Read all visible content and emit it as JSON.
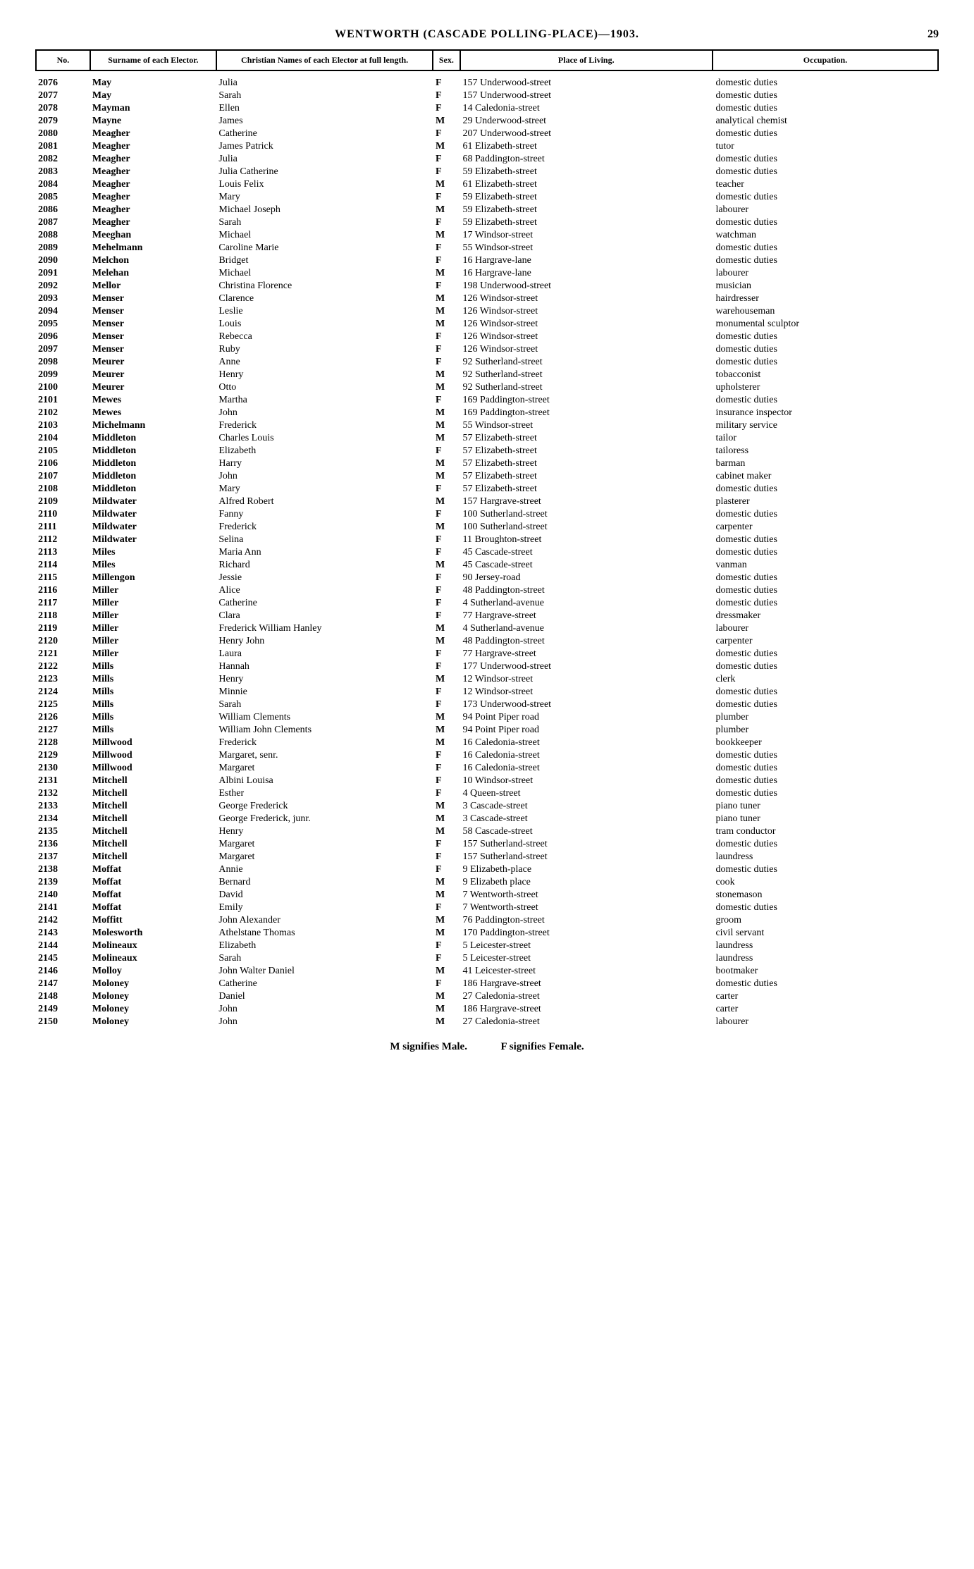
{
  "page_number": "29",
  "title": "WENTWORTH (CASCADE POLLING-PLACE)—1903.",
  "columns": [
    "No.",
    "Surname of each Elector.",
    "Christian Names of each Elector at full length.",
    "Sex.",
    "Place of Living.",
    "Occupation."
  ],
  "footer_left": "M signifies Male.",
  "footer_right": "F signifies Female.",
  "rows": [
    [
      "2076",
      "May",
      "Julia",
      "F",
      "157 Underwood-street",
      "domestic duties"
    ],
    [
      "2077",
      "May",
      "Sarah",
      "F",
      "157 Underwood-street",
      "domestic duties"
    ],
    [
      "2078",
      "Mayman",
      "Ellen",
      "F",
      "14 Caledonia-street",
      "domestic duties"
    ],
    [
      "2079",
      "Mayne",
      "James",
      "M",
      "29 Underwood-street",
      "analytical chemist"
    ],
    [
      "2080",
      "Meagher",
      "Catherine",
      "F",
      "207 Underwood-street",
      "domestic duties"
    ],
    [
      "2081",
      "Meagher",
      "James Patrick",
      "M",
      "61 Elizabeth-street",
      "tutor"
    ],
    [
      "2082",
      "Meagher",
      "Julia",
      "F",
      "68 Paddington-street",
      "domestic duties"
    ],
    [
      "2083",
      "Meagher",
      "Julia Catherine",
      "F",
      "59 Elizabeth-street",
      "domestic duties"
    ],
    [
      "2084",
      "Meagher",
      "Louis Felix",
      "M",
      "61 Elizabeth-street",
      "teacher"
    ],
    [
      "2085",
      "Meagher",
      "Mary",
      "F",
      "59 Elizabeth-street",
      "domestic duties"
    ],
    [
      "2086",
      "Meagher",
      "Michael Joseph",
      "M",
      "59 Elizabeth-street",
      "labourer"
    ],
    [
      "2087",
      "Meagher",
      "Sarah",
      "F",
      "59 Elizabeth-street",
      "domestic duties"
    ],
    [
      "2088",
      "Meeghan",
      "Michael",
      "M",
      "17 Windsor-street",
      "watchman"
    ],
    [
      "2089",
      "Mehelmann",
      "Caroline Marie",
      "F",
      "55 Windsor-street",
      "domestic duties"
    ],
    [
      "2090",
      "Melchon",
      "Bridget",
      "F",
      "16 Hargrave-lane",
      "domestic duties"
    ],
    [
      "2091",
      "Melehan",
      "Michael",
      "M",
      "16 Hargrave-lane",
      "labourer"
    ],
    [
      "2092",
      "Mellor",
      "Christina Florence",
      "F",
      "198 Underwood-street",
      "musician"
    ],
    [
      "2093",
      "Menser",
      "Clarence",
      "M",
      "126 Windsor-street",
      "hairdresser"
    ],
    [
      "2094",
      "Menser",
      "Leslie",
      "M",
      "126 Windsor-street",
      "warehouseman"
    ],
    [
      "2095",
      "Menser",
      "Louis",
      "M",
      "126 Windsor-street",
      "monumental sculptor"
    ],
    [
      "2096",
      "Menser",
      "Rebecca",
      "F",
      "126 Windsor-street",
      "domestic duties"
    ],
    [
      "2097",
      "Menser",
      "Ruby",
      "F",
      "126 Windsor-street",
      "domestic duties"
    ],
    [
      "2098",
      "Meurer",
      "Anne",
      "F",
      "92 Sutherland-street",
      "domestic duties"
    ],
    [
      "2099",
      "Meurer",
      "Henry",
      "M",
      "92 Sutherland-street",
      "tobacconist"
    ],
    [
      "2100",
      "Meurer",
      "Otto",
      "M",
      "92 Sutherland-street",
      "upholsterer"
    ],
    [
      "2101",
      "Mewes",
      "Martha",
      "F",
      "169 Paddington-street",
      "domestic duties"
    ],
    [
      "2102",
      "Mewes",
      "John",
      "M",
      "169 Paddington-street",
      "insurance inspector"
    ],
    [
      "2103",
      "Michelmann",
      "Frederick",
      "M",
      "55 Windsor-street",
      "military service"
    ],
    [
      "2104",
      "Middleton",
      "Charles Louis",
      "M",
      "57 Elizabeth-street",
      "tailor"
    ],
    [
      "2105",
      "Middleton",
      "Elizabeth",
      "F",
      "57 Elizabeth-street",
      "tailoress"
    ],
    [
      "2106",
      "Middleton",
      "Harry",
      "M",
      "57 Elizabeth-street",
      "barman"
    ],
    [
      "2107",
      "Middleton",
      "John",
      "M",
      "57 Elizabeth-street",
      "cabinet maker"
    ],
    [
      "2108",
      "Middleton",
      "Mary",
      "F",
      "57 Elizabeth-street",
      "domestic duties"
    ],
    [
      "2109",
      "Mildwater",
      "Alfred Robert",
      "M",
      "157 Hargrave-street",
      "plasterer"
    ],
    [
      "2110",
      "Mildwater",
      "Fanny",
      "F",
      "100 Sutherland-street",
      "domestic duties"
    ],
    [
      "2111",
      "Mildwater",
      "Frederick",
      "M",
      "100 Sutherland-street",
      "carpenter"
    ],
    [
      "2112",
      "Mildwater",
      "Selina",
      "F",
      "11 Broughton-street",
      "domestic duties"
    ],
    [
      "2113",
      "Miles",
      "Maria Ann",
      "F",
      "45 Cascade-street",
      "domestic duties"
    ],
    [
      "2114",
      "Miles",
      "Richard",
      "M",
      "45 Cascade-street",
      "vanman"
    ],
    [
      "2115",
      "Millengon",
      "Jessie",
      "F",
      "90 Jersey-road",
      "domestic duties"
    ],
    [
      "2116",
      "Miller",
      "Alice",
      "F",
      "48 Paddington-street",
      "domestic duties"
    ],
    [
      "2117",
      "Miller",
      "Catherine",
      "F",
      "4 Sutherland-avenue",
      "domestic duties"
    ],
    [
      "2118",
      "Miller",
      "Clara",
      "F",
      "77 Hargrave-street",
      "dressmaker"
    ],
    [
      "2119",
      "Miller",
      "Frederick William Hanley",
      "M",
      "4 Sutherland-avenue",
      "labourer"
    ],
    [
      "2120",
      "Miller",
      "Henry John",
      "M",
      "48 Paddington-street",
      "carpenter"
    ],
    [
      "2121",
      "Miller",
      "Laura",
      "F",
      "77 Hargrave-street",
      "domestic duties"
    ],
    [
      "2122",
      "Mills",
      "Hannah",
      "F",
      "177 Underwood-street",
      "domestic duties"
    ],
    [
      "2123",
      "Mills",
      "Henry",
      "M",
      "12 Windsor-street",
      "clerk"
    ],
    [
      "2124",
      "Mills",
      "Minnie",
      "F",
      "12 Windsor-street",
      "domestic duties"
    ],
    [
      "2125",
      "Mills",
      "Sarah",
      "F",
      "173 Underwood-street",
      "domestic duties"
    ],
    [
      "2126",
      "Mills",
      "William Clements",
      "M",
      "94 Point Piper road",
      "plumber"
    ],
    [
      "2127",
      "Mills",
      "William John Clements",
      "M",
      "94 Point Piper road",
      "plumber"
    ],
    [
      "2128",
      "Millwood",
      "Frederick",
      "M",
      "16 Caledonia-street",
      "bookkeeper"
    ],
    [
      "2129",
      "Millwood",
      "Margaret, senr.",
      "F",
      "16 Caledonia-street",
      "domestic duties"
    ],
    [
      "2130",
      "Millwood",
      "Margaret",
      "F",
      "16 Caledonia-street",
      "domestic duties"
    ],
    [
      "2131",
      "Mitchell",
      "Albini Louisa",
      "F",
      "10 Windsor-street",
      "domestic duties"
    ],
    [
      "2132",
      "Mitchell",
      "Esther",
      "F",
      "4 Queen-street",
      "domestic duties"
    ],
    [
      "2133",
      "Mitchell",
      "George Frederick",
      "M",
      "3 Cascade-street",
      "piano tuner"
    ],
    [
      "2134",
      "Mitchell",
      "George Frederick, junr.",
      "M",
      "3 Cascade-street",
      "piano tuner"
    ],
    [
      "2135",
      "Mitchell",
      "Henry",
      "M",
      "58 Cascade-street",
      "tram conductor"
    ],
    [
      "2136",
      "Mitchell",
      "Margaret",
      "F",
      "157 Sutherland-street",
      "domestic duties"
    ],
    [
      "2137",
      "Mitchell",
      "Margaret",
      "F",
      "157 Sutherland-street",
      "laundress"
    ],
    [
      "2138",
      "Moffat",
      "Annie",
      "F",
      "9 Elizabeth-place",
      "domestic duties"
    ],
    [
      "2139",
      "Moffat",
      "Bernard",
      "M",
      "9 Elizabeth place",
      "cook"
    ],
    [
      "2140",
      "Moffat",
      "David",
      "M",
      "7 Wentworth-street",
      "stonemason"
    ],
    [
      "2141",
      "Moffat",
      "Emily",
      "F",
      "7 Wentworth-street",
      "domestic duties"
    ],
    [
      "2142",
      "Moffitt",
      "John Alexander",
      "M",
      "76 Paddington-street",
      "groom"
    ],
    [
      "2143",
      "Molesworth",
      "Athelstane Thomas",
      "M",
      "170 Paddington-street",
      "civil servant"
    ],
    [
      "2144",
      "Molineaux",
      "Elizabeth",
      "F",
      "5 Leicester-street",
      "laundress"
    ],
    [
      "2145",
      "Molineaux",
      "Sarah",
      "F",
      "5 Leicester-street",
      "laundress"
    ],
    [
      "2146",
      "Molloy",
      "John Walter Daniel",
      "M",
      "41 Leicester-street",
      "bootmaker"
    ],
    [
      "2147",
      "Moloney",
      "Catherine",
      "F",
      "186 Hargrave-street",
      "domestic duties"
    ],
    [
      "2148",
      "Moloney",
      "Daniel",
      "M",
      "27 Caledonia-street",
      "carter"
    ],
    [
      "2149",
      "Moloney",
      "John",
      "M",
      "186 Hargrave-street",
      "carter"
    ],
    [
      "2150",
      "Moloney",
      "John",
      "M",
      "27 Caledonia-street",
      "labourer"
    ]
  ]
}
